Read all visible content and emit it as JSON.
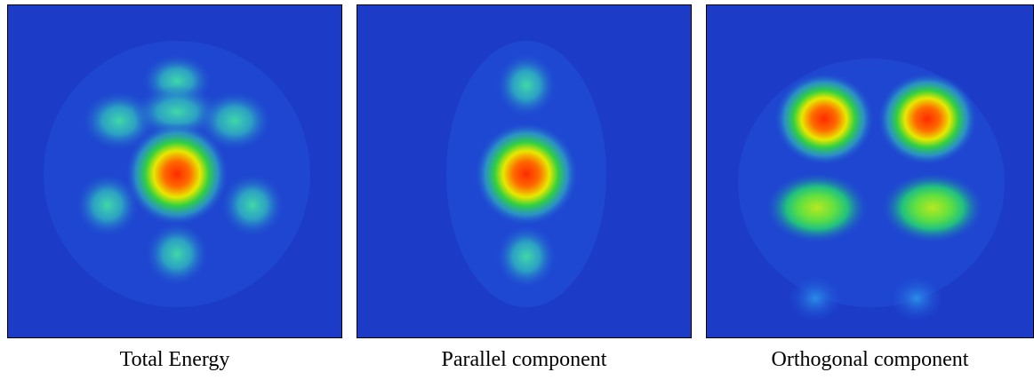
{
  "panels": [
    {
      "caption": "Total Energy"
    },
    {
      "caption": "Parallel component"
    },
    {
      "caption": "Orthogonal component"
    }
  ]
}
